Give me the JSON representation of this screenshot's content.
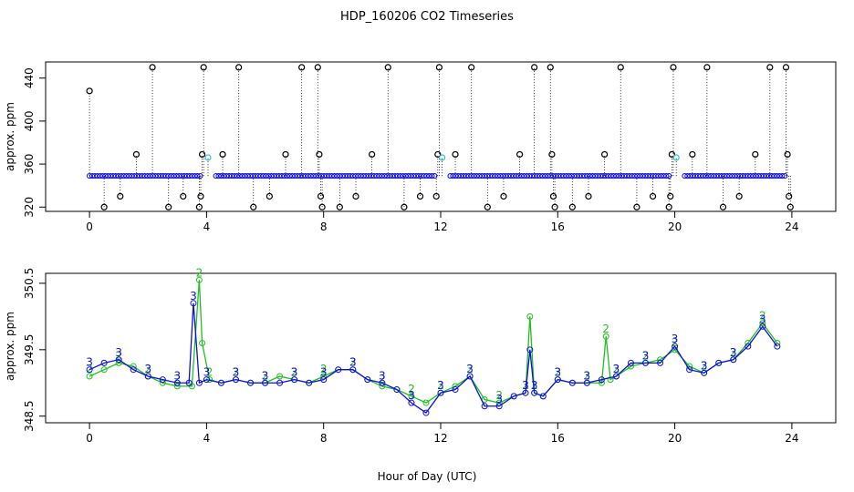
{
  "chart_data": [
    {
      "type": "scatter",
      "title": "HDP_160206  CO2 Timeseries",
      "xlabel": "",
      "ylabel": "approx. ppm",
      "xlim": [
        -1.5,
        25.5
      ],
      "ylim": [
        316,
        455
      ],
      "x_ticks": [
        "0",
        "4",
        "8",
        "12",
        "16",
        "20",
        "24"
      ],
      "y_ticks": [
        "320",
        "360",
        "400",
        "440"
      ],
      "grid": false,
      "colors": {
        "baseline": "#1010d0",
        "spikes": "#000000",
        "cyan": "#30c0d0"
      },
      "baseline": {
        "value": 349,
        "x_range": [
          0,
          23.8
        ]
      },
      "spikes": [
        {
          "x": 0.0,
          "y": 428
        },
        {
          "x": 0.5,
          "y": 320
        },
        {
          "x": 1.05,
          "y": 330
        },
        {
          "x": 1.6,
          "y": 369
        },
        {
          "x": 2.15,
          "y": 450
        },
        {
          "x": 2.7,
          "y": 320
        },
        {
          "x": 3.2,
          "y": 330
        },
        {
          "x": 3.75,
          "y": 320
        },
        {
          "x": 3.8,
          "y": 330
        },
        {
          "x": 3.85,
          "y": 369
        },
        {
          "x": 3.9,
          "y": 450
        },
        {
          "x": 4.05,
          "y": 366
        },
        {
          "x": 4.55,
          "y": 369
        },
        {
          "x": 5.1,
          "y": 450
        },
        {
          "x": 5.6,
          "y": 320
        },
        {
          "x": 6.15,
          "y": 330
        },
        {
          "x": 6.7,
          "y": 369
        },
        {
          "x": 7.25,
          "y": 450
        },
        {
          "x": 7.8,
          "y": 450
        },
        {
          "x": 7.85,
          "y": 369
        },
        {
          "x": 7.9,
          "y": 330
        },
        {
          "x": 7.95,
          "y": 320
        },
        {
          "x": 8.55,
          "y": 320
        },
        {
          "x": 9.1,
          "y": 330
        },
        {
          "x": 9.65,
          "y": 369
        },
        {
          "x": 10.2,
          "y": 450
        },
        {
          "x": 10.75,
          "y": 320
        },
        {
          "x": 11.3,
          "y": 330
        },
        {
          "x": 11.85,
          "y": 330
        },
        {
          "x": 11.9,
          "y": 369
        },
        {
          "x": 11.95,
          "y": 450
        },
        {
          "x": 12.05,
          "y": 366
        },
        {
          "x": 12.5,
          "y": 369
        },
        {
          "x": 13.05,
          "y": 450
        },
        {
          "x": 13.6,
          "y": 320
        },
        {
          "x": 14.15,
          "y": 330
        },
        {
          "x": 14.7,
          "y": 369
        },
        {
          "x": 15.2,
          "y": 450
        },
        {
          "x": 15.75,
          "y": 450
        },
        {
          "x": 15.8,
          "y": 369
        },
        {
          "x": 15.85,
          "y": 330
        },
        {
          "x": 15.9,
          "y": 320
        },
        {
          "x": 16.5,
          "y": 320
        },
        {
          "x": 17.05,
          "y": 330
        },
        {
          "x": 17.6,
          "y": 369
        },
        {
          "x": 18.15,
          "y": 450
        },
        {
          "x": 18.7,
          "y": 320
        },
        {
          "x": 19.25,
          "y": 330
        },
        {
          "x": 19.8,
          "y": 320
        },
        {
          "x": 19.85,
          "y": 330
        },
        {
          "x": 19.9,
          "y": 369
        },
        {
          "x": 19.95,
          "y": 450
        },
        {
          "x": 20.05,
          "y": 366
        },
        {
          "x": 20.6,
          "y": 369
        },
        {
          "x": 21.1,
          "y": 450
        },
        {
          "x": 21.65,
          "y": 320
        },
        {
          "x": 22.2,
          "y": 330
        },
        {
          "x": 22.75,
          "y": 369
        },
        {
          "x": 23.25,
          "y": 450
        },
        {
          "x": 23.8,
          "y": 450
        },
        {
          "x": 23.85,
          "y": 369
        },
        {
          "x": 23.9,
          "y": 330
        },
        {
          "x": 23.95,
          "y": 320
        }
      ],
      "cyan_points": [
        {
          "x": 4.05,
          "y": 366
        },
        {
          "x": 12.05,
          "y": 366
        },
        {
          "x": 20.05,
          "y": 366
        }
      ]
    },
    {
      "type": "line",
      "title": "",
      "xlabel": "Hour of Day (UTC)",
      "ylabel": "approx. ppm",
      "xlim": [
        -1.5,
        25.5
      ],
      "ylim": [
        348.4,
        350.65
      ],
      "x_ticks": [
        "0",
        "4",
        "8",
        "12",
        "16",
        "20",
        "24"
      ],
      "y_ticks": [
        "348.5",
        "349.5",
        "350.5"
      ],
      "grid": false,
      "series": [
        {
          "name": "3",
          "color": "#1010d0",
          "x": [
            0,
            0.5,
            1,
            1.5,
            2,
            2.5,
            3,
            3.4,
            3.55,
            3.75,
            4,
            4.5,
            5,
            5.5,
            6,
            6.5,
            7,
            7.5,
            8,
            8.5,
            9,
            9.5,
            10,
            10.5,
            11,
            11.5,
            12,
            12.5,
            13,
            13.5,
            14,
            14.5,
            14.9,
            15.05,
            15.2,
            15.5,
            16,
            16.5,
            17,
            17.5,
            18,
            18.5,
            19,
            19.5,
            20,
            20.5,
            21,
            21.5,
            22,
            22.5,
            23,
            23.5
          ],
          "y": [
            349.2,
            349.3,
            349.35,
            349.2,
            349.1,
            349.05,
            349.0,
            349.0,
            350.2,
            349.0,
            349.05,
            349.0,
            349.05,
            349.0,
            349.0,
            349.0,
            349.05,
            349.0,
            349.05,
            349.2,
            349.2,
            349.05,
            349.0,
            348.9,
            348.7,
            348.55,
            348.85,
            348.9,
            349.1,
            348.65,
            348.65,
            348.8,
            348.85,
            349.5,
            348.85,
            348.8,
            349.05,
            349.0,
            349.0,
            349.05,
            349.1,
            349.3,
            349.3,
            349.3,
            349.55,
            349.2,
            349.15,
            349.3,
            349.35,
            349.55,
            349.85,
            349.55
          ]
        },
        {
          "name": "2",
          "color": "#20c020",
          "x": [
            0,
            0.5,
            1,
            1.5,
            2,
            2.5,
            3,
            3.5,
            3.75,
            3.85,
            4.1,
            4.5,
            5,
            5.5,
            6,
            6.5,
            7,
            7.5,
            8,
            8.5,
            9,
            9.5,
            10,
            10.5,
            11,
            11.5,
            12,
            12.5,
            13,
            13.5,
            14,
            14.5,
            14.9,
            15.05,
            15.2,
            15.5,
            16,
            16.5,
            17,
            17.5,
            17.65,
            17.8,
            18,
            18.5,
            19,
            19.5,
            20,
            20.5,
            21,
            21.5,
            22,
            22.5,
            23,
            23.5
          ],
          "y": [
            349.1,
            349.2,
            349.3,
            349.25,
            349.1,
            349.0,
            348.95,
            348.95,
            350.55,
            349.6,
            349.05,
            349.0,
            349.05,
            349.0,
            349.0,
            349.1,
            349.05,
            349.0,
            349.1,
            349.2,
            349.2,
            349.05,
            348.95,
            348.9,
            348.8,
            348.7,
            348.85,
            348.95,
            349.1,
            348.75,
            348.7,
            348.8,
            348.85,
            350.0,
            348.85,
            348.8,
            349.05,
            349.0,
            349.0,
            349.0,
            349.7,
            349.05,
            349.1,
            349.25,
            349.3,
            349.35,
            349.5,
            349.25,
            349.15,
            349.3,
            349.35,
            349.6,
            349.9,
            349.6
          ]
        }
      ]
    }
  ]
}
